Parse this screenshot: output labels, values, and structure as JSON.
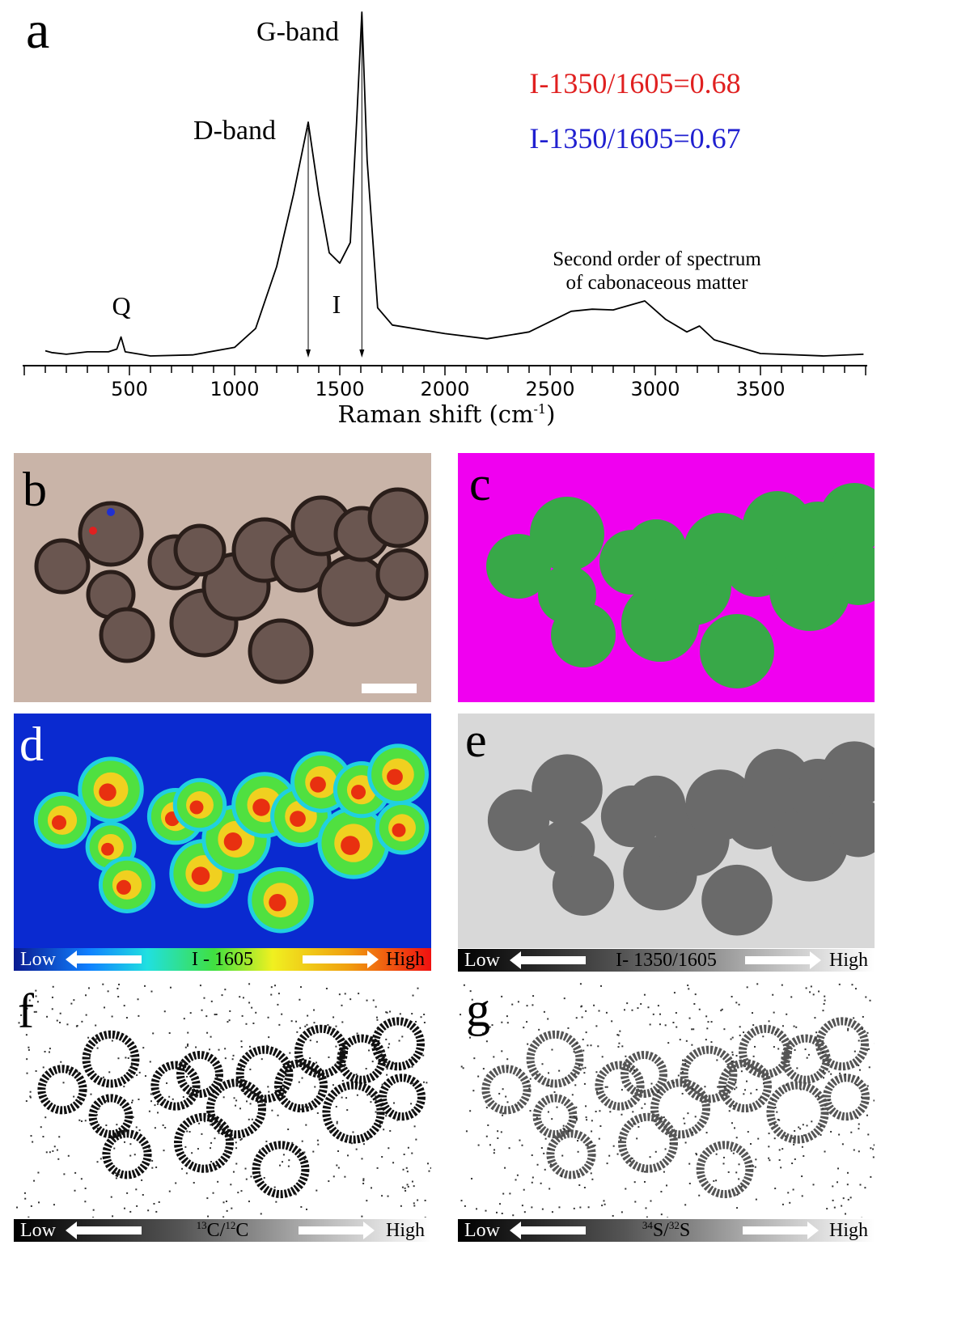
{
  "panel_labels": {
    "a": "a",
    "b": "b",
    "c": "c",
    "d": "d",
    "e": "e",
    "f": "f",
    "g": "g"
  },
  "chart_data": {
    "type": "line",
    "title": "",
    "xlabel": "Raman shift (cm",
    "xlabel_sup": "-1",
    "xlabel_close": ")",
    "ylabel": "",
    "xlim": [
      0,
      4000
    ],
    "ylim": [
      0,
      100
    ],
    "xticks": [
      500,
      1000,
      1500,
      2000,
      2500,
      3000,
      3500
    ],
    "minor_tick_step": 100,
    "grid": false,
    "series": [
      {
        "color": "#000000",
        "x": [
          100,
          130,
          200,
          300,
          400,
          440,
          460,
          480,
          600,
          800,
          1000,
          1100,
          1200,
          1280,
          1350,
          1400,
          1450,
          1500,
          1550,
          1580,
          1605,
          1630,
          1680,
          1750,
          2000,
          2200,
          2400,
          2600,
          2700,
          2800,
          2950,
          3050,
          3150,
          3210,
          3280,
          3500,
          3800,
          3990
        ],
        "y": [
          1.5,
          1,
          0.5,
          1.2,
          1.2,
          2,
          5.5,
          1.2,
          0,
          0.3,
          2.5,
          8,
          26,
          47,
          68,
          47,
          30,
          27,
          33,
          68,
          100,
          57,
          14,
          9,
          6.5,
          5,
          7,
          13,
          13.6,
          13.4,
          16,
          10.6,
          7,
          8.7,
          4.7,
          0.7,
          0,
          0.5
        ]
      }
    ],
    "annotations": {
      "g_band": "G-band",
      "d_band": "D-band",
      "q": "Q",
      "i": "I",
      "second_order": "Second order of spectrum",
      "second_order_2": "of cabonaceous matter",
      "ratio_red": "I-1350/1605=0.68",
      "ratio_blue": "I-1350/1605=0.67"
    },
    "colors": {
      "ratio_red": "#e02020",
      "ratio_blue": "#2020d0"
    }
  },
  "colorbars": {
    "d": {
      "low": "Low",
      "label": "I - 1605",
      "high": "High"
    },
    "e": {
      "low": "Low",
      "label": "I- 1350/1605",
      "high": "High"
    },
    "f": {
      "low": "Low",
      "label_sup": "13",
      "label_a": "C/",
      "label_sup2": "12",
      "label_b": "C",
      "high": "High"
    },
    "g": {
      "low": "Low",
      "label_sup": "34",
      "label_a": "S/",
      "label_sup2": "32",
      "label_b": "S",
      "high": "High"
    }
  },
  "spot_colors": {
    "red": "#e02020",
    "blue": "#2030d0"
  }
}
